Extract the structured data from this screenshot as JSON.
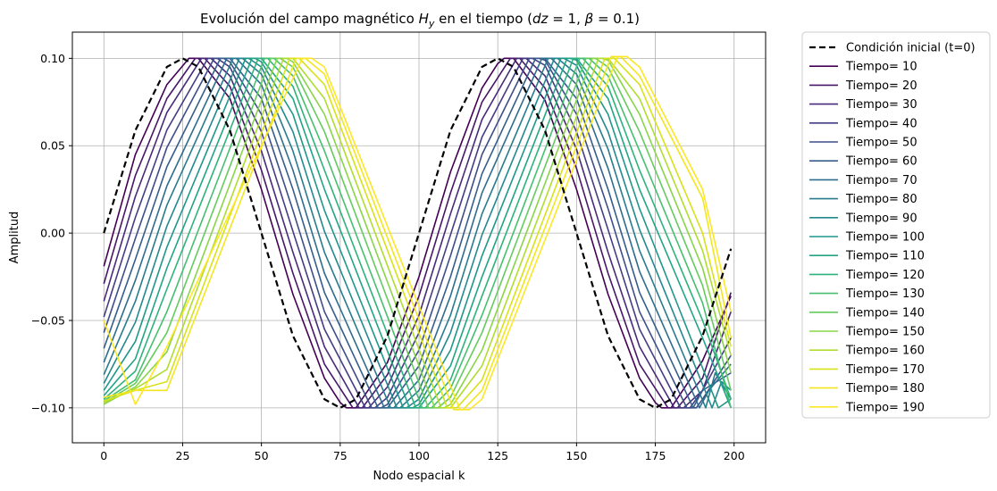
{
  "chart_data": {
    "type": "line",
    "title": "Evolución del campo magnético H_y en el tiempo  (dz = 1, β = 0.1)",
    "title_parts": {
      "prefix": "Evolución del campo magnético ",
      "var_main": "H",
      "var_sub": "y",
      "mid": " en el tiempo  (",
      "p1_name": "dz",
      "p1_value": " = 1, ",
      "p2_name": "β",
      "p2_value": " = 0.1)"
    },
    "xlabel": "Nodo espacial k",
    "ylabel": "Amplitud",
    "xlim": [
      -10,
      210
    ],
    "ylim": [
      -0.12,
      0.115
    ],
    "xticks": [
      0,
      25,
      50,
      75,
      100,
      125,
      150,
      175,
      200
    ],
    "yticks": [
      -0.1,
      -0.05,
      0.0,
      0.05,
      0.1
    ],
    "xtick_labels": [
      "0",
      "25",
      "50",
      "75",
      "100",
      "125",
      "150",
      "175",
      "200"
    ],
    "ytick_labels": [
      "−0.10",
      "−0.05",
      "0.00",
      "0.05",
      "0.10"
    ],
    "grid": true,
    "legend_position": "outside-right",
    "colormap": "viridis",
    "initial_condition": {
      "name": "Condición inicial (t=0)",
      "color": "#000000",
      "style": "dashed",
      "x": [
        0,
        10,
        20,
        25,
        30,
        40,
        50,
        60,
        70,
        75,
        80,
        90,
        100,
        110,
        120,
        125,
        130,
        140,
        150,
        160,
        170,
        175,
        180,
        190,
        199
      ],
      "y": [
        0.0,
        0.0588,
        0.0951,
        0.1,
        0.0951,
        0.0588,
        0.0,
        -0.0588,
        -0.0951,
        -0.1,
        -0.0951,
        -0.0588,
        0.0,
        0.0588,
        0.0951,
        0.1,
        0.0951,
        0.0588,
        0.0,
        -0.0588,
        -0.0951,
        -0.1,
        -0.0951,
        -0.0588,
        -0.009
      ]
    },
    "series": [
      {
        "name": "Tiempo= 10",
        "color": "#440154",
        "x": [
          0,
          10,
          20,
          27,
          30,
          40,
          50,
          60,
          70,
          75,
          77,
          80,
          90,
          100,
          110,
          120,
          125,
          127,
          130,
          140,
          150,
          160,
          170,
          175,
          177,
          180,
          190,
          199
        ],
        "y": [
          -0.019,
          0.045,
          0.085,
          0.1,
          0.1,
          0.077,
          0.025,
          -0.035,
          -0.083,
          -0.097,
          -0.1,
          -0.1,
          -0.074,
          -0.025,
          0.035,
          0.083,
          0.097,
          0.1,
          0.1,
          0.076,
          0.025,
          -0.035,
          -0.083,
          -0.097,
          -0.1,
          -0.1,
          -0.073,
          -0.036
        ]
      },
      {
        "name": "Tiempo= 20",
        "color": "#481769",
        "x": [
          0,
          10,
          20,
          29,
          32,
          40,
          50,
          60,
          70,
          79,
          82,
          90,
          100,
          110,
          120,
          129,
          132,
          140,
          150,
          160,
          170,
          179,
          182,
          190,
          199
        ],
        "y": [
          -0.029,
          0.033,
          0.077,
          0.1,
          0.1,
          0.084,
          0.036,
          -0.023,
          -0.075,
          -0.1,
          -0.1,
          -0.081,
          -0.036,
          0.023,
          0.075,
          0.1,
          0.1,
          0.083,
          0.037,
          -0.023,
          -0.075,
          -0.1,
          -0.1,
          -0.083,
          -0.034
        ]
      },
      {
        "name": "Tiempo= 30",
        "color": "#472a7a",
        "x": [
          0,
          10,
          20,
          31,
          34,
          40,
          50,
          60,
          70,
          81,
          84,
          90,
          100,
          110,
          120,
          131,
          134,
          140,
          150,
          160,
          170,
          181,
          184,
          190,
          199
        ],
        "y": [
          -0.039,
          0.021,
          0.069,
          0.1,
          0.1,
          0.09,
          0.047,
          -0.011,
          -0.065,
          -0.1,
          -0.1,
          -0.088,
          -0.047,
          0.011,
          0.065,
          0.1,
          0.1,
          0.09,
          0.048,
          -0.011,
          -0.065,
          -0.1,
          -0.1,
          -0.09,
          -0.045
        ]
      },
      {
        "name": "Tiempo= 40",
        "color": "#433d84",
        "x": [
          0,
          10,
          20,
          33,
          36,
          40,
          50,
          60,
          70,
          83,
          86,
          90,
          100,
          110,
          120,
          133,
          136,
          140,
          150,
          160,
          170,
          183,
          186,
          190,
          199
        ],
        "y": [
          -0.048,
          0.009,
          0.059,
          0.1,
          0.1,
          0.095,
          0.058,
          0.001,
          -0.055,
          -0.1,
          -0.1,
          -0.094,
          -0.057,
          -0.001,
          0.055,
          0.1,
          0.1,
          0.096,
          0.058,
          0.002,
          -0.055,
          -0.1,
          -0.1,
          -0.09,
          -0.06
        ]
      },
      {
        "name": "Tiempo= 50",
        "color": "#3d4e8a",
        "x": [
          0,
          10,
          20,
          35,
          38,
          40,
          50,
          60,
          70,
          85,
          88,
          90,
          100,
          110,
          120,
          135,
          138,
          140,
          150,
          160,
          170,
          185,
          188,
          190,
          199
        ],
        "y": [
          -0.057,
          -0.003,
          0.049,
          0.1,
          0.1,
          0.098,
          0.068,
          0.013,
          -0.045,
          -0.1,
          -0.1,
          -0.098,
          -0.067,
          -0.013,
          0.045,
          0.1,
          0.1,
          0.099,
          0.068,
          0.014,
          -0.045,
          -0.1,
          -0.1,
          -0.095,
          -0.07
        ]
      },
      {
        "name": "Tiempo= 60",
        "color": "#355e8d",
        "x": [
          0,
          10,
          20,
          37,
          40,
          50,
          60,
          70,
          87,
          90,
          100,
          110,
          120,
          137,
          140,
          150,
          160,
          170,
          187,
          190,
          199
        ],
        "y": [
          -0.066,
          -0.015,
          0.038,
          0.1,
          0.1,
          0.077,
          0.025,
          -0.034,
          -0.1,
          -0.1,
          -0.076,
          -0.025,
          0.034,
          0.1,
          0.1,
          0.077,
          0.025,
          -0.034,
          -0.1,
          -0.09,
          -0.08
        ]
      },
      {
        "name": "Tiempo= 70",
        "color": "#2e6d8e",
        "x": [
          0,
          10,
          20,
          39,
          42,
          50,
          60,
          70,
          89,
          92,
          100,
          110,
          120,
          139,
          142,
          150,
          160,
          170,
          189,
          192,
          199
        ],
        "y": [
          -0.074,
          -0.027,
          0.027,
          0.1,
          0.1,
          0.085,
          0.036,
          -0.023,
          -0.1,
          -0.1,
          -0.084,
          -0.036,
          0.023,
          0.1,
          0.1,
          0.085,
          0.037,
          -0.022,
          -0.1,
          -0.09,
          -0.075
        ]
      },
      {
        "name": "Tiempo= 80",
        "color": "#297b8e",
        "x": [
          0,
          10,
          20,
          41,
          44,
          50,
          60,
          70,
          91,
          94,
          100,
          110,
          120,
          141,
          144,
          150,
          160,
          170,
          191,
          194,
          199
        ],
        "y": [
          -0.081,
          -0.039,
          0.016,
          0.1,
          0.1,
          0.091,
          0.047,
          -0.011,
          -0.1,
          -0.1,
          -0.09,
          -0.047,
          0.011,
          0.1,
          0.1,
          0.091,
          0.048,
          -0.01,
          -0.1,
          -0.08,
          -0.095
        ]
      },
      {
        "name": "Tiempo= 90",
        "color": "#23898e",
        "x": [
          0,
          10,
          20,
          43,
          46,
          50,
          60,
          70,
          93,
          96,
          100,
          110,
          120,
          143,
          146,
          150,
          160,
          170,
          193,
          196,
          199
        ],
        "y": [
          -0.086,
          -0.051,
          0.004,
          0.1,
          0.1,
          0.095,
          0.058,
          0.001,
          -0.1,
          -0.1,
          -0.095,
          -0.057,
          -0.001,
          0.1,
          0.1,
          0.096,
          0.058,
          0.002,
          -0.1,
          -0.085,
          -0.09
        ]
      },
      {
        "name": "Tiempo= 100",
        "color": "#1f978b",
        "x": [
          0,
          10,
          20,
          45,
          48,
          50,
          60,
          70,
          95,
          98,
          100,
          110,
          120,
          145,
          148,
          150,
          160,
          170,
          195,
          199
        ],
        "y": [
          -0.09,
          -0.062,
          -0.008,
          0.1,
          0.1,
          0.098,
          0.068,
          0.013,
          -0.1,
          -0.1,
          -0.098,
          -0.067,
          -0.013,
          0.1,
          0.1,
          0.099,
          0.068,
          0.014,
          -0.1,
          -0.095
        ]
      },
      {
        "name": "Tiempo= 110",
        "color": "#21a585",
        "x": [
          0,
          10,
          20,
          47,
          50,
          60,
          70,
          97,
          100,
          110,
          120,
          147,
          150,
          160,
          170,
          190,
          199
        ],
        "y": [
          -0.093,
          -0.072,
          -0.02,
          0.1,
          0.1,
          0.077,
          0.025,
          -0.1,
          -0.1,
          -0.076,
          -0.025,
          0.1,
          0.1,
          0.077,
          0.025,
          -0.06,
          -0.1
        ]
      },
      {
        "name": "Tiempo= 120",
        "color": "#2eb37c",
        "x": [
          0,
          10,
          20,
          49,
          52,
          60,
          70,
          99,
          102,
          110,
          120,
          149,
          152,
          160,
          170,
          190,
          199
        ],
        "y": [
          -0.095,
          -0.079,
          -0.032,
          0.1,
          0.1,
          0.084,
          0.036,
          -0.1,
          -0.1,
          -0.084,
          -0.036,
          0.1,
          0.1,
          0.084,
          0.036,
          -0.05,
          -0.095
        ]
      },
      {
        "name": "Tiempo= 130",
        "color": "#46c06f",
        "x": [
          0,
          10,
          20,
          51,
          54,
          60,
          70,
          101,
          104,
          110,
          120,
          151,
          154,
          160,
          170,
          190,
          199
        ],
        "y": [
          -0.096,
          -0.084,
          -0.045,
          0.1,
          0.1,
          0.09,
          0.047,
          -0.1,
          -0.1,
          -0.089,
          -0.047,
          0.1,
          0.1,
          0.09,
          0.047,
          -0.04,
          -0.1
        ]
      },
      {
        "name": "Tiempo= 140",
        "color": "#65cb5e",
        "x": [
          0,
          10,
          20,
          53,
          56,
          60,
          70,
          103,
          106,
          110,
          120,
          153,
          156,
          160,
          170,
          190,
          199
        ],
        "y": [
          -0.097,
          -0.086,
          -0.057,
          0.1,
          0.1,
          0.095,
          0.058,
          -0.1,
          -0.1,
          -0.094,
          -0.057,
          0.1,
          0.1,
          0.095,
          0.058,
          -0.03,
          -0.09
        ]
      },
      {
        "name": "Tiempo= 150",
        "color": "#89d548",
        "x": [
          0,
          10,
          20,
          55,
          58,
          60,
          70,
          105,
          108,
          110,
          120,
          155,
          158,
          160,
          170,
          190,
          199
        ],
        "y": [
          -0.098,
          -0.088,
          -0.068,
          0.1,
          0.1,
          0.098,
          0.068,
          -0.1,
          -0.1,
          -0.098,
          -0.067,
          0.1,
          0.1,
          0.099,
          0.068,
          -0.02,
          -0.08
        ]
      },
      {
        "name": "Tiempo= 160",
        "color": "#b0dd2f",
        "x": [
          0,
          10,
          20,
          57,
          60,
          70,
          107,
          110,
          120,
          157,
          160,
          170,
          190,
          199
        ],
        "y": [
          -0.097,
          -0.089,
          -0.078,
          0.1,
          0.1,
          0.077,
          -0.1,
          -0.1,
          -0.076,
          0.1,
          0.1,
          0.077,
          -0.01,
          -0.07
        ]
      },
      {
        "name": "Tiempo= 170",
        "color": "#d8e219",
        "x": [
          0,
          10,
          20,
          59,
          62,
          70,
          109,
          112,
          120,
          159,
          162,
          170,
          190,
          199
        ],
        "y": [
          -0.096,
          -0.09,
          -0.085,
          0.1,
          0.1,
          0.085,
          -0.1,
          -0.1,
          -0.084,
          0.1,
          0.1,
          0.085,
          0.0,
          -0.065
        ]
      },
      {
        "name": "Tiempo= 180",
        "color": "#f3e61e",
        "x": [
          0,
          10,
          20,
          61,
          64,
          70,
          111,
          114,
          120,
          161,
          164,
          170,
          190,
          199
        ],
        "y": [
          -0.094,
          -0.09,
          -0.09,
          0.1,
          0.1,
          0.091,
          -0.101,
          -0.101,
          -0.09,
          0.101,
          0.101,
          0.09,
          0.02,
          -0.06
        ]
      },
      {
        "name": "Tiempo= 190",
        "color": "#fde725",
        "x": [
          0,
          10,
          20,
          63,
          66,
          70,
          113,
          116,
          120,
          163,
          166,
          170,
          190,
          199
        ],
        "y": [
          -0.05,
          -0.098,
          -0.065,
          0.1,
          0.1,
          0.095,
          -0.101,
          -0.101,
          -0.095,
          0.101,
          0.101,
          0.095,
          0.025,
          -0.045
        ]
      }
    ]
  }
}
